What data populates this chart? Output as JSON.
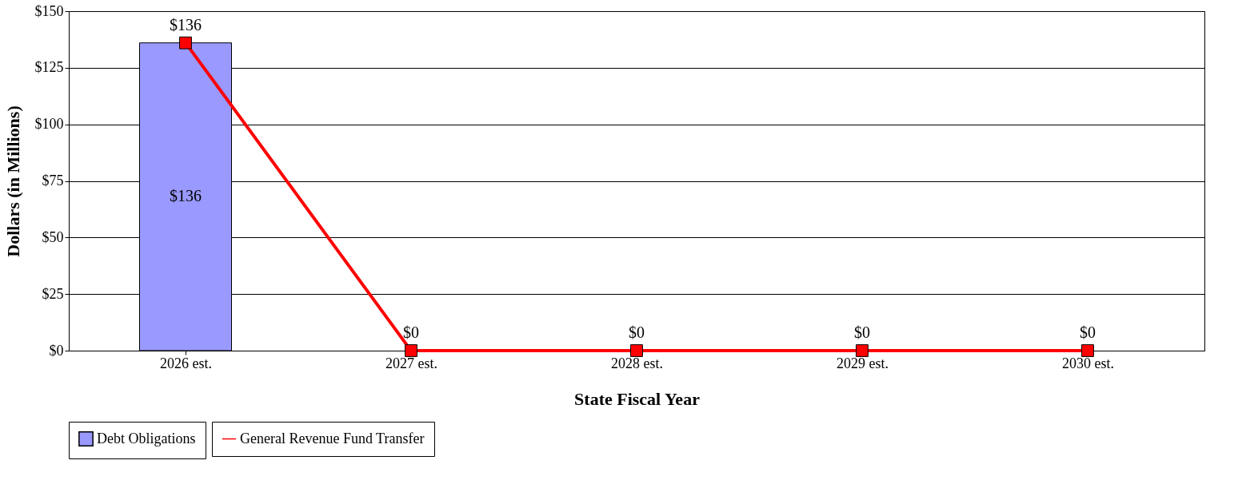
{
  "chart_data": {
    "type": "bar",
    "xlabel": "State Fiscal Year",
    "ylabel": "Dollars (in Millions)",
    "categories": [
      "2026 est.",
      "2027 est.",
      "2028 est.",
      "2029 est.",
      "2030 est."
    ],
    "series": [
      {
        "name": "Debt Obligations",
        "color": "#9999ff",
        "values": [
          136,
          null,
          null,
          null,
          null
        ],
        "value_labels": [
          "$136",
          null,
          null,
          null,
          null
        ]
      },
      {
        "name": "General Revenue Fund Transfer",
        "type": "line",
        "color": "#ff0000",
        "marker": "square",
        "values": [
          136,
          0,
          0,
          0,
          0
        ],
        "value_labels": [
          "$136",
          "$0",
          "$0",
          "$0",
          "$0"
        ]
      }
    ],
    "ylim": [
      0,
      150
    ],
    "yticks": [
      {
        "value": 0,
        "label": "$0"
      },
      {
        "value": 25,
        "label": "$25"
      },
      {
        "value": 50,
        "label": "$50"
      },
      {
        "value": 75,
        "label": "$75"
      },
      {
        "value": 100,
        "label": "$100"
      },
      {
        "value": 125,
        "label": "$125"
      },
      {
        "value": 150,
        "label": "$150"
      }
    ],
    "grid": "y",
    "legend": "bottom"
  }
}
